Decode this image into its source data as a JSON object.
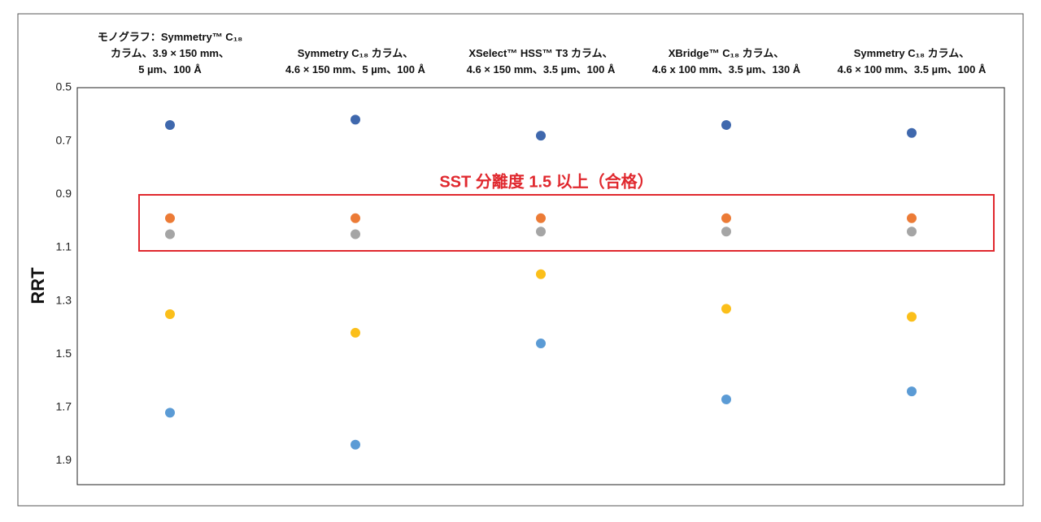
{
  "chart_data": {
    "type": "dot",
    "categories": [
      "モノグラフ：Symmetry™ C₁₈\nカラム、3.9 × 150 mm、\n5 µm、100 Å",
      "Symmetry C₁₈ カラム、\n4.6 × 150 mm、5 µm、100 Å",
      "XSelect™ HSS™ T3 カラム、\n4.6 × 150 mm、3.5 µm、100 Å",
      "XBridge™ C₁₈ カラム、\n4.6 x 100 mm、3.5 µm、130 Å",
      "Symmetry C₁₈ カラム、\n4.6 × 100 mm、3.5 µm、100 Å"
    ],
    "series": [
      {
        "color": "#3f68ad",
        "values": [
          0.64,
          0.62,
          0.68,
          0.64,
          0.67
        ]
      },
      {
        "color": "#ec7b36",
        "values": [
          0.99,
          0.99,
          0.99,
          0.99,
          0.99
        ]
      },
      {
        "color": "#a5a5a5",
        "values": [
          1.05,
          1.05,
          1.04,
          1.04,
          1.04
        ]
      },
      {
        "color": "#fbbf1a",
        "values": [
          1.35,
          1.42,
          1.2,
          1.33,
          1.36
        ]
      },
      {
        "color": "#5b9bd5",
        "values": [
          1.72,
          1.84,
          1.46,
          1.67,
          1.64
        ]
      }
    ],
    "y_label": "RRT",
    "ylim": [
      0.5,
      1.99
    ],
    "yticks": [
      0.5,
      0.7,
      0.9,
      1.1,
      1.3,
      1.5,
      1.7,
      1.9
    ],
    "y_reversed": true,
    "annotation": "SST 分離度 1.5 以上（合格）"
  }
}
